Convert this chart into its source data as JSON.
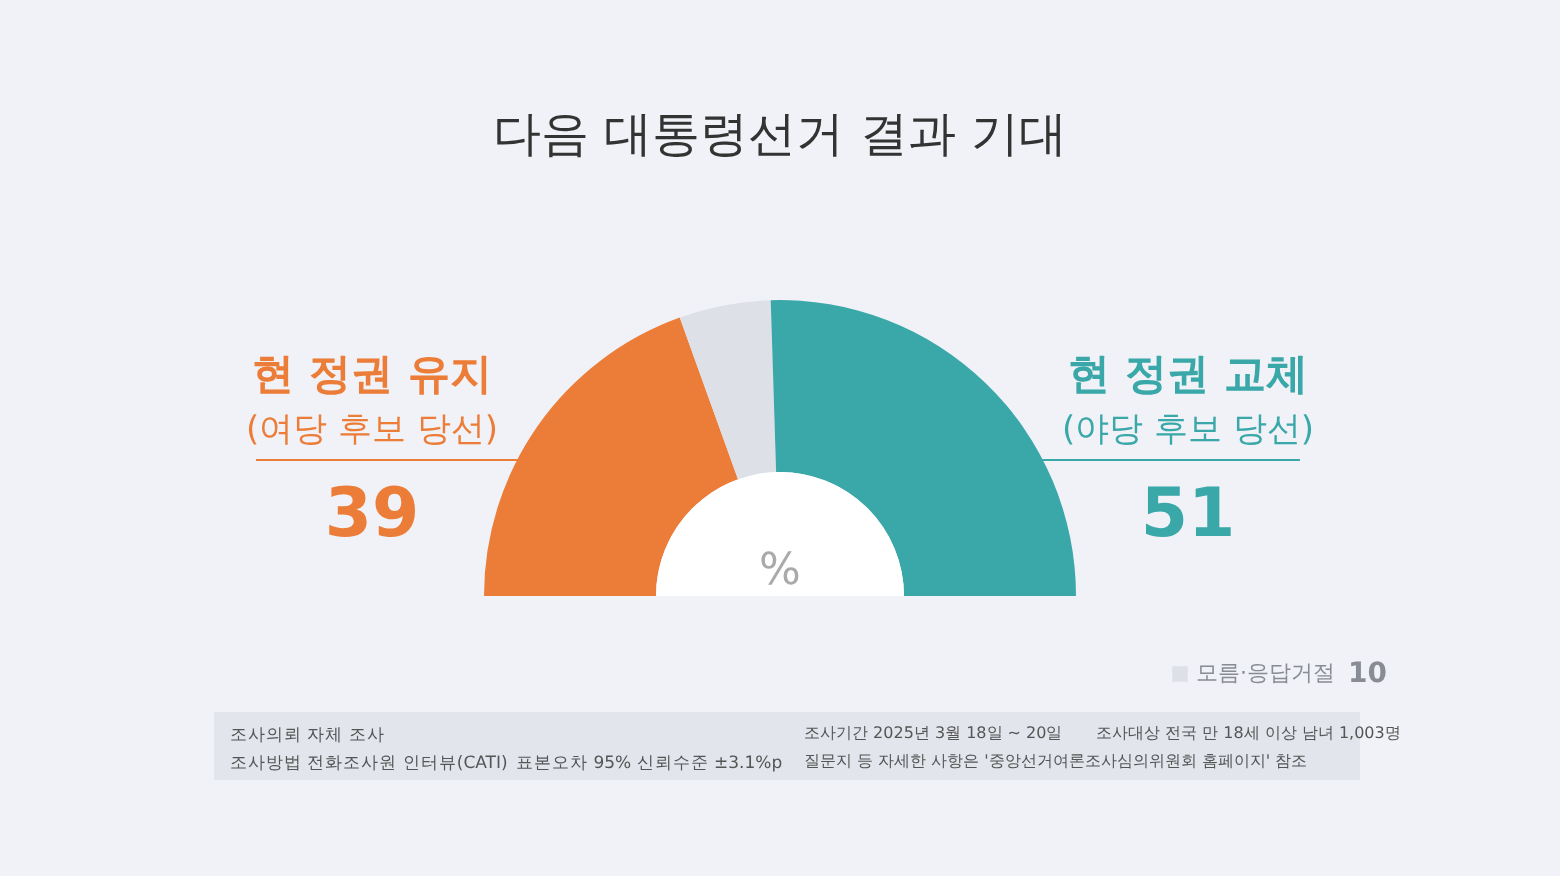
{
  "chart_data": {
    "type": "donut",
    "title": "다음 대통령선거 결과 기대",
    "categories": [
      "현 정권 유지\n(여당 후보 당선)",
      "모름·응답거절",
      "현 정권 교체\n(야당 후보 당선)"
    ],
    "values": [
      39,
      10,
      51
    ],
    "colors": [
      "#ec7d38",
      "#dde0e7",
      "#3aa7a9"
    ],
    "data_labels": true,
    "annotations": [
      "%",
      "조사의뢰  자체 조사",
      "조사방법  전화조사원 인터뷰(CATI)",
      "표본오차  95% 신뢰수준 ±3.1%p",
      "조사기간  2025년 3월 18일 ~ 20일",
      "조사대상  전국 만 18세 이상 남녀 1,003명",
      "질문지 등 자세한 사항은 '중앙선거여론조사심의위원회 홈페이지' 참조"
    ]
  }
}
